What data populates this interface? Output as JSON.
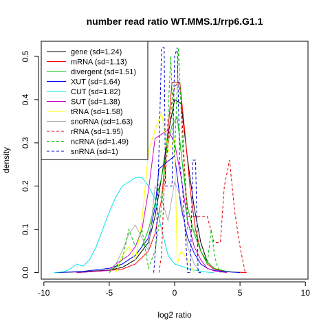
{
  "chart_data": {
    "type": "line",
    "title": "number read ratio WT.MMS.1/rrp6.G1.1",
    "xlabel": "log2 ratio",
    "ylabel": "density",
    "xlim": [
      -10,
      10
    ],
    "ylim": [
      0,
      0.5
    ],
    "xticks": [
      -10,
      -5,
      0,
      5,
      10
    ],
    "yticks": [
      0.0,
      0.1,
      0.2,
      0.3,
      0.4,
      0.5
    ],
    "xtick_labels": [
      "-10",
      "-5",
      "0",
      "5",
      "10"
    ],
    "ytick_labels": [
      "0.0",
      "0.1",
      "0.2",
      "0.3",
      "0.4",
      "0.5"
    ],
    "grid": false,
    "legend_position": "top-left",
    "series": [
      {
        "name": "gene (sd=1.24)",
        "color": "#000000",
        "dash": "solid",
        "x": [
          -9.2,
          -7,
          -5,
          -4,
          -3,
          -2,
          -1.5,
          -1,
          -0.5,
          0,
          0.5,
          1,
          1.5,
          2,
          2.5,
          3,
          4,
          5.5
        ],
        "y": [
          0,
          0.002,
          0.006,
          0.012,
          0.03,
          0.07,
          0.13,
          0.22,
          0.32,
          0.4,
          0.39,
          0.26,
          0.15,
          0.07,
          0.025,
          0.01,
          0.002,
          0
        ]
      },
      {
        "name": "mRNA (sd=1.13)",
        "color": "#ff0000",
        "dash": "solid",
        "x": [
          -7.5,
          -5,
          -4,
          -3,
          -2,
          -1.5,
          -1,
          -0.5,
          -0.2,
          0.4,
          0.8,
          1.2,
          1.6,
          2,
          2.5,
          3,
          4,
          5.5
        ],
        "y": [
          0,
          0.005,
          0.008,
          0.02,
          0.05,
          0.09,
          0.17,
          0.33,
          0.44,
          0.44,
          0.32,
          0.19,
          0.1,
          0.05,
          0.02,
          0.008,
          0.002,
          0
        ]
      },
      {
        "name": "divergent (sd=1.51)",
        "color": "#00bb00",
        "dash": "solid",
        "x": [
          -7.5,
          -5,
          -4,
          -3,
          -2.5,
          -2,
          -1.5,
          -1,
          -0.5,
          -0.2,
          0.2,
          0.6,
          1,
          1.5,
          2,
          2.5,
          3,
          4,
          5
        ],
        "y": [
          0,
          0.005,
          0.02,
          0.04,
          0.06,
          0.1,
          0.16,
          0.22,
          0.3,
          0.34,
          0.36,
          0.25,
          0.15,
          0.09,
          0.05,
          0.025,
          0.01,
          0.003,
          0
        ]
      },
      {
        "name": "XUT (sd=1.64)",
        "color": "#0000ff",
        "dash": "solid",
        "x": [
          -9.2,
          -7,
          -5,
          -4,
          -3,
          -2,
          -1.5,
          -1.2,
          -0.8,
          -0.4,
          0,
          0.5,
          1,
          1.5,
          2,
          2.5,
          3,
          4,
          5
        ],
        "y": [
          0,
          0.003,
          0.01,
          0.02,
          0.04,
          0.08,
          0.15,
          0.24,
          0.25,
          0.26,
          0.27,
          0.15,
          0.08,
          0.045,
          0.02,
          0.01,
          0.005,
          0.002,
          0
        ]
      },
      {
        "name": "CUT (sd=1.82)",
        "color": "#00e5ee",
        "dash": "solid",
        "x": [
          -9.2,
          -8.5,
          -8,
          -7.5,
          -7,
          -6.5,
          -6,
          -5.5,
          -5,
          -4.5,
          -4,
          -3.5,
          -3,
          -2.5,
          -2,
          -1.5,
          -1,
          -0.5,
          0,
          0.5,
          1,
          1.5,
          2,
          2.5,
          3
        ],
        "y": [
          0,
          0.002,
          0.008,
          0.02,
          0.015,
          0.03,
          0.06,
          0.1,
          0.14,
          0.175,
          0.2,
          0.21,
          0.22,
          0.22,
          0.2,
          0.17,
          0.1,
          0.04,
          0.02,
          0.015,
          0.01,
          0.006,
          0.003,
          0.001,
          0
        ]
      },
      {
        "name": "SUT (sd=1.38)",
        "color": "#cc00cc",
        "dash": "solid",
        "x": [
          -7.5,
          -5,
          -4.5,
          -4,
          -3.5,
          -3,
          -2.5,
          -2,
          -1.5,
          -1,
          -0.5,
          0,
          0.5,
          1,
          1.5,
          2,
          2.5,
          3,
          4
        ],
        "y": [
          0,
          0.005,
          0.02,
          0.03,
          0.04,
          0.06,
          0.1,
          0.19,
          0.31,
          0.32,
          0.33,
          0.3,
          0.22,
          0.12,
          0.06,
          0.03,
          0.01,
          0.004,
          0
        ]
      },
      {
        "name": "tRNA (sd=1.58)",
        "color": "#ffff00",
        "dash": "solid",
        "x": [
          -4.5,
          -4,
          -3.5,
          -3,
          -2.5,
          -2,
          -1.5,
          -1,
          -0.5,
          0,
          0.2,
          0.5,
          1,
          1.5
        ],
        "y": [
          0,
          0.04,
          0.06,
          0.03,
          0.12,
          0.28,
          0.33,
          0.37,
          0.28,
          0.31,
          0.02,
          0.05,
          0.03,
          0
        ]
      },
      {
        "name": "snoRNA (sd=1.63)",
        "color": "#aaaaaa",
        "dash": "solid",
        "x": [
          -5,
          -4.5,
          -4,
          -3.5,
          -3,
          -2.5,
          -2,
          -1.5,
          -1,
          -0.5,
          0,
          0.5,
          1,
          1.5,
          2
        ],
        "y": [
          0,
          0.02,
          0.05,
          0.09,
          0.11,
          0.08,
          0.05,
          0.2,
          0.17,
          0.12,
          0.21,
          0.17,
          0.06,
          0.02,
          0
        ]
      },
      {
        "name": "rRNA (sd=1.95)",
        "color": "#dd0000",
        "dash": "dashed",
        "x": [
          -1.2,
          -1,
          -0.8,
          -0.5,
          -0.2,
          0,
          0.3,
          0.5,
          0.8,
          1,
          1.5,
          2,
          2.5,
          3,
          3.5,
          3.8,
          4.2,
          4.6,
          5,
          5.4
        ],
        "y": [
          0,
          0.04,
          0.2,
          0.3,
          0.4,
          0.43,
          0.44,
          0.4,
          0.22,
          0.13,
          0.13,
          0.13,
          0.13,
          0.07,
          0.07,
          0.2,
          0.26,
          0.14,
          0.06,
          0
        ]
      },
      {
        "name": "ncRNA (sd=1.49)",
        "color": "#00bb00",
        "dash": "dashed",
        "x": [
          -5,
          -4,
          -3.5,
          -3,
          -2.5,
          -2,
          -1.5,
          -1,
          -0.6,
          -0.3,
          0,
          0.3,
          0.6,
          1,
          1.5,
          2,
          2.5,
          2.8,
          3,
          3.2,
          3.5
        ],
        "y": [
          0,
          0.03,
          0.1,
          0.06,
          0.1,
          0.01,
          0.05,
          0.15,
          0.3,
          0.5,
          0.27,
          0.52,
          0.3,
          0.1,
          0.1,
          0.05,
          0.02,
          0.1,
          0.05,
          0.02,
          0
        ]
      },
      {
        "name": "snRNA (sd=1)",
        "color": "#0000cc",
        "dash": "dashed",
        "x": [
          -1.6,
          -1.4,
          -1.2,
          -1,
          -0.8,
          -0.7,
          -0.4,
          -0.2,
          0,
          0.2,
          0.4,
          0.6,
          0.8,
          1,
          1.2,
          1.4,
          1.6,
          1.8,
          2
        ],
        "y": [
          0,
          0.08,
          0.28,
          0.52,
          0.52,
          0.2,
          0.2,
          0.2,
          0.5,
          0.52,
          0.25,
          0.2,
          0.1,
          0,
          0,
          0.26,
          0.26,
          0,
          0
        ]
      }
    ]
  }
}
